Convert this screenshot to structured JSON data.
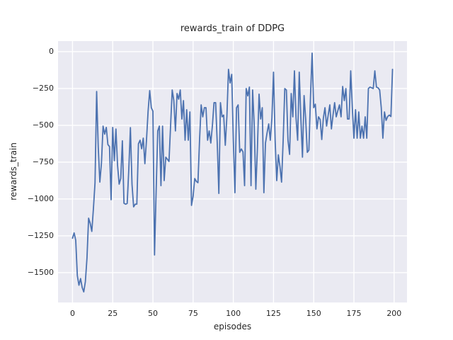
{
  "figure": {
    "title": "rewards_train of DDPG",
    "xlabel": "episodes",
    "ylabel": "rewards_train",
    "background_color": "#ffffff",
    "axes_background": "#eaeaf2",
    "grid_color": "#ffffff",
    "line_color": "#4c72b0",
    "text_color": "#262626"
  },
  "chart_data": {
    "type": "line",
    "title": "rewards_train of DDPG",
    "xlabel": "episodes",
    "ylabel": "rewards_train",
    "series_name": "rewards_train",
    "grid": true,
    "legend_position": "none",
    "xlim": [
      -9,
      208
    ],
    "ylim": [
      -1702,
      72
    ],
    "xticks": {
      "values": [
        0,
        25,
        50,
        75,
        100,
        125,
        150,
        175,
        200
      ],
      "labels": [
        "0",
        "25",
        "50",
        "75",
        "100",
        "125",
        "150",
        "175",
        "200"
      ]
    },
    "yticks": {
      "values": [
        0,
        -250,
        -500,
        -750,
        -1000,
        -1250,
        -1500
      ],
      "labels": [
        "0",
        "−250",
        "−500",
        "−750",
        "−1000",
        "−1250",
        "−1500"
      ]
    },
    "x_start": 0,
    "x_step": 1,
    "values": [
      -1266,
      -1230,
      -1280,
      -1520,
      -1585,
      -1540,
      -1600,
      -1630,
      -1560,
      -1400,
      -1130,
      -1165,
      -1220,
      -1065,
      -890,
      -270,
      -650,
      -885,
      -755,
      -505,
      -560,
      -514,
      -630,
      -644,
      -1005,
      -514,
      -740,
      -525,
      -770,
      -899,
      -860,
      -605,
      -1029,
      -1035,
      -1030,
      -800,
      -515,
      -900,
      -1053,
      -1035,
      -1035,
      -625,
      -601,
      -659,
      -587,
      -760,
      -601,
      -404,
      -264,
      -380,
      -404,
      -1380,
      -950,
      -538,
      -505,
      -909,
      -505,
      -875,
      -716,
      -730,
      -745,
      -500,
      -260,
      -332,
      -538,
      -284,
      -322,
      -260,
      -457,
      -332,
      -601,
      -394,
      -601,
      -409,
      -1043,
      -980,
      -861,
      -880,
      -889,
      -600,
      -361,
      -442,
      -380,
      -380,
      -601,
      -538,
      -620,
      -500,
      -346,
      -346,
      -620,
      -962,
      -346,
      -442,
      -430,
      -635,
      -440,
      -120,
      -212,
      -154,
      -601,
      -957,
      -380,
      -361,
      -683,
      -660,
      -680,
      -909,
      -250,
      -300,
      -240,
      -909,
      -260,
      -500,
      -933,
      -650,
      -288,
      -457,
      -380,
      -957,
      -620,
      -550,
      -490,
      -601,
      -450,
      -139,
      -601,
      -875,
      -700,
      -780,
      -885,
      -600,
      -250,
      -260,
      -601,
      -697,
      -284,
      -442,
      -130,
      -450,
      -601,
      -139,
      -450,
      -716,
      -298,
      -457,
      -683,
      -668,
      -300,
      -10,
      -380,
      -356,
      -524,
      -442,
      -460,
      -596,
      -450,
      -380,
      -505,
      -430,
      -361,
      -524,
      -430,
      -346,
      -442,
      -400,
      -361,
      -442,
      -236,
      -332,
      -250,
      -457,
      -457,
      -130,
      -380,
      -587,
      -394,
      -587,
      -409,
      -587,
      -505,
      -587,
      -442,
      -587,
      -250,
      -240,
      -245,
      -250,
      -130,
      -240,
      -245,
      -260,
      -380,
      -587,
      -409,
      -466,
      -440,
      -430,
      -440,
      -120
    ]
  }
}
